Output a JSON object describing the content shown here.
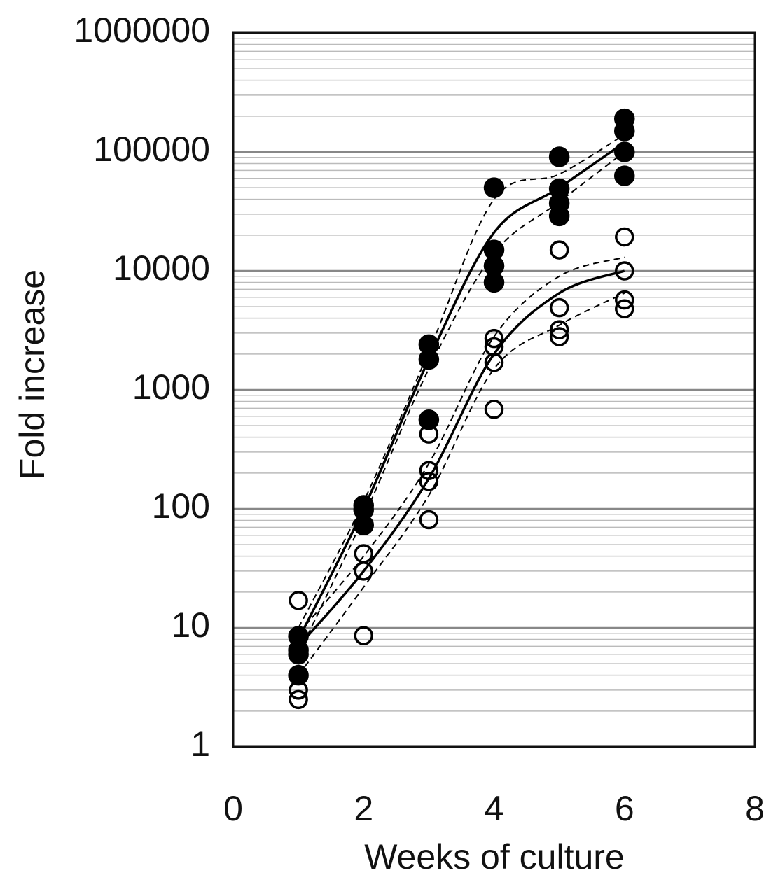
{
  "chart_data": {
    "type": "scatter",
    "x_label": "Weeks of culture",
    "y_label": "Fold increase",
    "xlim": [
      0,
      8
    ],
    "xticks": [
      0,
      2,
      4,
      6,
      8
    ],
    "ylim": [
      1,
      1000000
    ],
    "yticks": [
      1,
      10,
      100,
      1000,
      10000,
      100000,
      1000000
    ],
    "log_y": true,
    "grid": true,
    "minor_grid": true,
    "series": [
      {
        "color": "#000000",
        "marker": "filled",
        "x": [
          1,
          1,
          1,
          1,
          2,
          2,
          2,
          3,
          3,
          3,
          4,
          4,
          4,
          4,
          5,
          5,
          5,
          5,
          6,
          6,
          6,
          6
        ],
        "values": [
          8.5,
          6.5,
          6,
          4,
          107,
          98,
          73,
          2400,
          1800,
          560,
          50000,
          15000,
          11000,
          8000,
          91000,
          49000,
          37000,
          29000,
          190000,
          150000,
          100000,
          63000
        ]
      },
      {
        "color": "#000000",
        "marker": "open",
        "x": [
          1,
          1,
          1,
          2,
          2,
          2,
          3,
          3,
          3,
          3,
          4,
          4,
          4,
          4,
          5,
          5,
          5,
          5,
          6,
          6,
          6,
          6
        ],
        "values": [
          17,
          3,
          2.5,
          42,
          30,
          8.6,
          425,
          210,
          170,
          81,
          2700,
          2300,
          1700,
          685,
          15000,
          4900,
          3200,
          2800,
          19300,
          10000,
          5700,
          4800
        ]
      },
      {
        "color": "#000000",
        "line": "solid",
        "x": [
          1,
          2,
          3,
          4,
          5,
          6
        ],
        "values": [
          8,
          100,
          1800,
          21000,
          50000,
          120000
        ]
      },
      {
        "color": "#000000",
        "line": "dashed",
        "x": [
          1,
          2,
          3,
          4,
          5,
          6
        ],
        "values": [
          10,
          115,
          2100,
          40000,
          65000,
          140000
        ]
      },
      {
        "color": "#000000",
        "line": "dashed",
        "x": [
          1,
          2,
          3,
          4,
          5,
          6
        ],
        "values": [
          6,
          85,
          1500,
          14000,
          38000,
          100000
        ]
      },
      {
        "color": "#000000",
        "line": "solid",
        "x": [
          1,
          2,
          3,
          4,
          5,
          6
        ],
        "values": [
          7,
          30,
          180,
          2000,
          6500,
          10000
        ]
      },
      {
        "color": "#000000",
        "line": "dashed",
        "x": [
          1,
          2,
          3,
          4,
          5,
          6
        ],
        "values": [
          9,
          40,
          240,
          2800,
          9000,
          13000
        ]
      },
      {
        "color": "#000000",
        "line": "dashed",
        "x": [
          1,
          2,
          3,
          4,
          5,
          6
        ],
        "values": [
          4,
          22,
          130,
          1500,
          3500,
          6500
        ]
      }
    ]
  }
}
